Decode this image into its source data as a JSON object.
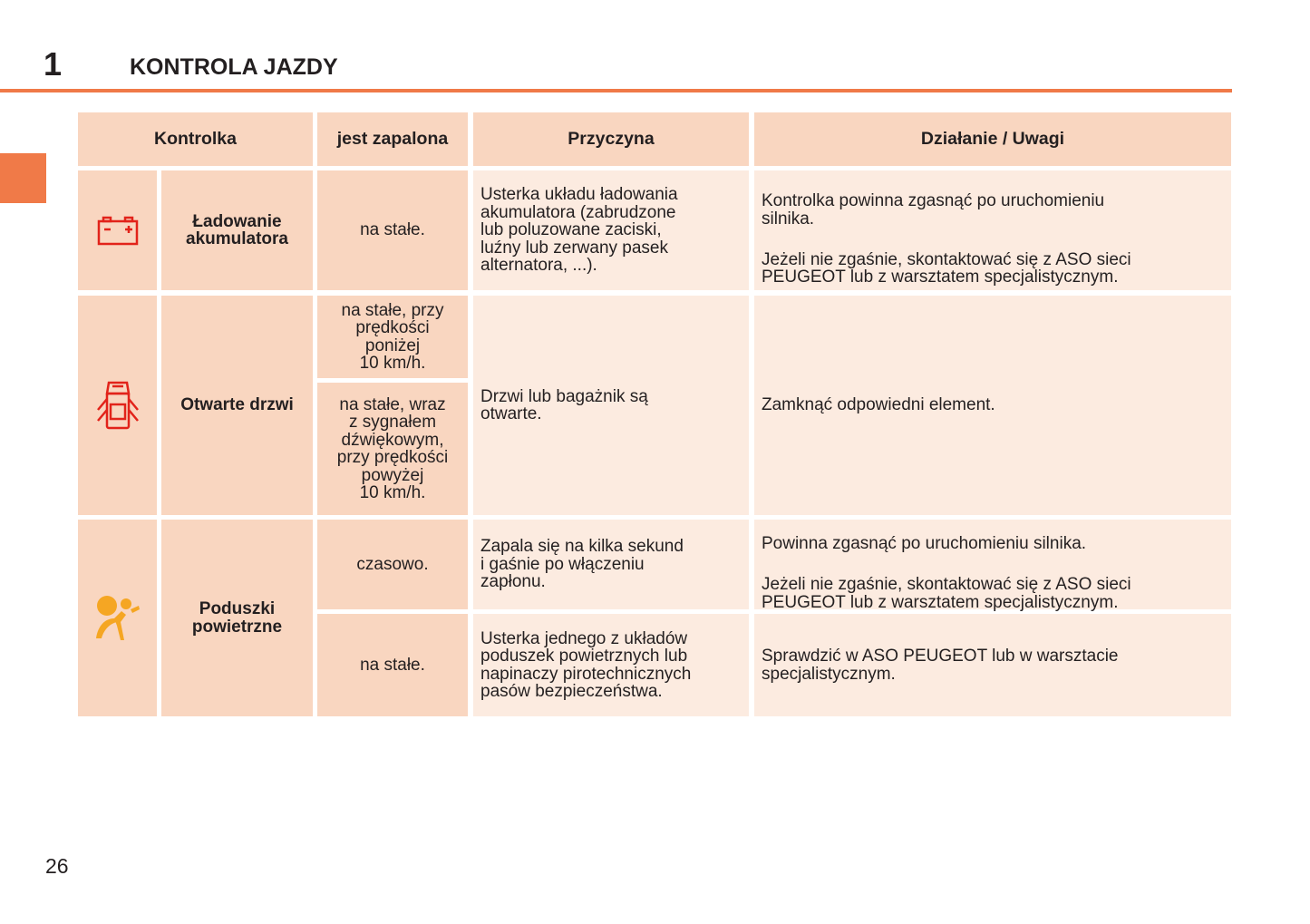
{
  "header": {
    "chapter": "1",
    "title": "KONTROLA JAZDY"
  },
  "table": {
    "columns": [
      "Kontrolka",
      "jest zapalona",
      "Przyczyna",
      "Działanie / Uwagi"
    ],
    "rows": [
      {
        "icon": "battery-icon",
        "icon_color": "#e2231a",
        "name": "Ładowanie\nakumulatora",
        "states": [
          {
            "when": "na stałe.",
            "cause": "Usterka układu ładowania\nakumulatora (zabrudzone\nlub poluzowane zaciski,\nluźny lub zerwany pasek\nalternatora, ...).",
            "action": [
              "Kontrolka powinna zgasnąć po uruchomieniu\nsilnika.",
              "Jeżeli nie zgaśnie, skontaktować się z ASO sieci\nPEUGEOT lub z warsztatem specjalistycznym."
            ]
          }
        ]
      },
      {
        "icon": "door-open-icon",
        "icon_color": "#e2231a",
        "name": "Otwarte drzwi",
        "states": [
          {
            "when": "na stałe, przy\nprędkości\nponiżej\n10 km/h."
          },
          {
            "when": "na stałe, wraz\nz sygnałem\ndźwiękowym,\nprzy prędkości\npowyżej\n10 km/h."
          }
        ],
        "cause": "Drzwi lub bagażnik są\notwarte.",
        "action": "Zamknąć odpowiedni element."
      },
      {
        "icon": "airbag-icon",
        "icon_color": "#f5a623",
        "name": "Poduszki\npowietrzne",
        "states": [
          {
            "when": "czasowo.",
            "cause": "Zapala się na kilka sekund\ni gaśnie po włączeniu\nzapłonu.",
            "action": [
              "Powinna zgasnąć po uruchomieniu silnika.",
              "Jeżeli nie zgaśnie, skontaktować się z ASO sieci\nPEUGEOT lub z warsztatem specjalistycznym."
            ]
          },
          {
            "when": "na stałe.",
            "cause": "Usterka jednego z układów\npoduszek powietrznych lub\nnapinaczy pirotechnicznych\npasów bezpieczeństwa.",
            "action": [
              "Sprawdzić w ASO PEUGEOT lub w warsztacie\nspecjalistycznym."
            ]
          }
        ]
      }
    ]
  },
  "footer": {
    "page_number": "26"
  }
}
